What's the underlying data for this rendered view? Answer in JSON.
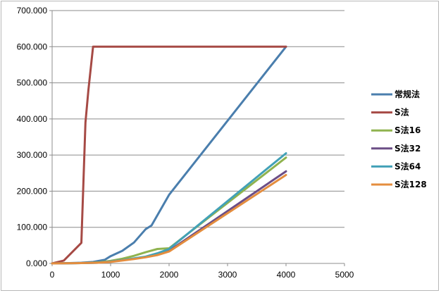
{
  "chart_data": {
    "type": "line",
    "title": "",
    "xlabel": "",
    "ylabel": "",
    "xlim": [
      0,
      5000
    ],
    "ylim": [
      0,
      700
    ],
    "x_ticks": [
      "0",
      "1000",
      "2000",
      "3000",
      "4000",
      "5000"
    ],
    "y_ticks": [
      "0.000",
      "100.000",
      "200.000",
      "300.000",
      "400.000",
      "500.000",
      "600.000",
      "700.000"
    ],
    "grid": "horizontal",
    "legend_position": "right",
    "series": [
      {
        "name": "常规法",
        "color": "#4a7ead",
        "points": [
          [
            0,
            0
          ],
          [
            300,
            1
          ],
          [
            500,
            2
          ],
          [
            700,
            4
          ],
          [
            900,
            10
          ],
          [
            1000,
            20
          ],
          [
            1200,
            35
          ],
          [
            1400,
            58
          ],
          [
            1600,
            95
          ],
          [
            1700,
            105
          ],
          [
            2000,
            190
          ],
          [
            4000,
            600
          ]
        ]
      },
      {
        "name": "S法",
        "color": "#a64a45",
        "points": [
          [
            0,
            0
          ],
          [
            200,
            8
          ],
          [
            500,
            57
          ],
          [
            570,
            390
          ],
          [
            620,
            480
          ],
          [
            700,
            600
          ],
          [
            4000,
            600
          ]
        ]
      },
      {
        "name": "S法16",
        "color": "#8fb34f",
        "points": [
          [
            0,
            0
          ],
          [
            500,
            1
          ],
          [
            800,
            3
          ],
          [
            1000,
            7
          ],
          [
            1200,
            13
          ],
          [
            1400,
            21
          ],
          [
            1600,
            31
          ],
          [
            1800,
            40
          ],
          [
            2000,
            42
          ],
          [
            4000,
            293
          ]
        ]
      },
      {
        "name": "S法32",
        "color": "#6c4e86",
        "points": [
          [
            0,
            0
          ],
          [
            500,
            1
          ],
          [
            800,
            2
          ],
          [
            1000,
            5
          ],
          [
            1200,
            9
          ],
          [
            1400,
            13
          ],
          [
            1600,
            18
          ],
          [
            1800,
            25
          ],
          [
            2000,
            35
          ],
          [
            4000,
            255
          ]
        ]
      },
      {
        "name": "S法64",
        "color": "#42a1b7",
        "points": [
          [
            0,
            0
          ],
          [
            500,
            1
          ],
          [
            800,
            2
          ],
          [
            1000,
            5
          ],
          [
            1200,
            9
          ],
          [
            1400,
            14
          ],
          [
            1600,
            19
          ],
          [
            1800,
            28
          ],
          [
            2000,
            40
          ],
          [
            4000,
            305
          ]
        ]
      },
      {
        "name": "S法128",
        "color": "#e48d3e",
        "points": [
          [
            0,
            0
          ],
          [
            500,
            1
          ],
          [
            800,
            2
          ],
          [
            1000,
            4
          ],
          [
            1200,
            8
          ],
          [
            1400,
            12
          ],
          [
            1600,
            17
          ],
          [
            1800,
            23
          ],
          [
            2000,
            33
          ],
          [
            4000,
            245
          ]
        ]
      }
    ]
  }
}
